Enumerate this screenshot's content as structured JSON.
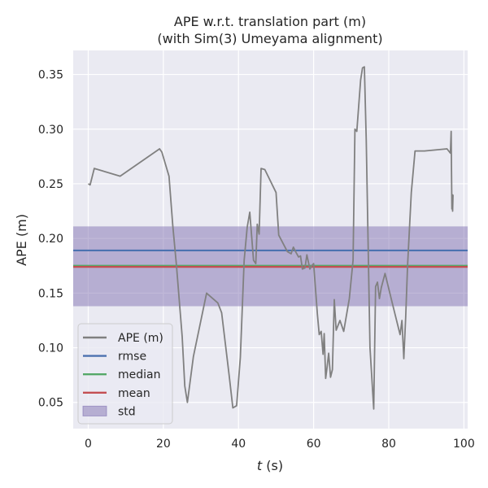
{
  "chart_data": {
    "type": "line",
    "title": "APE w.r.t. translation part (m)",
    "subtitle": "(with Sim(3) Umeyama alignment)",
    "xlabel_var": "t",
    "xlabel_unit": " (s)",
    "ylabel": "APE (m)",
    "xlim": [
      -4,
      101
    ],
    "ylim": [
      0.026,
      0.372
    ],
    "xticks": [
      0,
      20,
      40,
      60,
      80,
      100
    ],
    "yticks": [
      0.05,
      0.1,
      0.15,
      0.2,
      0.25,
      0.3,
      0.35
    ],
    "ytick_labels": [
      "0.05",
      "0.10",
      "0.15",
      "0.20",
      "0.25",
      "0.30",
      "0.35"
    ],
    "grid": true,
    "legend_position": "lower-left",
    "stats": {
      "rmse": 0.189,
      "median": 0.175,
      "mean": 0.174,
      "std_band": [
        0.138,
        0.211
      ]
    },
    "series": [
      {
        "name": "APE (m)",
        "color": "#808080",
        "x": [
          0.0,
          0.5,
          1.6,
          8.5,
          19.0,
          19.6,
          21.5,
          22.5,
          23.5,
          25.0,
          25.7,
          26.4,
          28.0,
          30.0,
          31.5,
          34.5,
          35.5,
          37.5,
          38.5,
          39.5,
          40.5,
          41.5,
          42.3,
          43.0,
          44.0,
          44.6,
          45.0,
          45.5,
          46.0,
          47.0,
          48.0,
          50.0,
          50.7,
          53.0,
          54.0,
          54.6,
          55.2,
          56.0,
          56.5,
          57.0,
          57.7,
          58.2,
          59.0,
          59.5,
          60.0,
          61.0,
          61.5,
          62.0,
          62.5,
          62.8,
          63.2,
          63.5,
          64.0,
          64.5,
          65.0,
          65.5,
          66.0,
          67.0,
          68.0,
          69.5,
          70.5,
          71.0,
          71.5,
          72.5,
          73.0,
          73.5,
          74.0,
          75.0,
          76.0,
          76.5,
          77.0,
          77.5,
          78.0,
          79.0,
          81.0,
          83.0,
          83.5,
          84.0,
          84.5,
          85.0,
          86.0,
          87.0,
          89.5,
          95.5,
          96.4,
          96.6,
          96.7,
          96.8,
          96.9,
          97.0,
          97.1
        ],
        "y": [
          0.25,
          0.249,
          0.264,
          0.257,
          0.282,
          0.279,
          0.257,
          0.212,
          0.175,
          0.11,
          0.065,
          0.05,
          0.092,
          0.125,
          0.15,
          0.141,
          0.132,
          0.075,
          0.045,
          0.047,
          0.091,
          0.18,
          0.21,
          0.224,
          0.18,
          0.177,
          0.213,
          0.204,
          0.264,
          0.263,
          0.256,
          0.242,
          0.203,
          0.188,
          0.186,
          0.192,
          0.188,
          0.183,
          0.184,
          0.172,
          0.173,
          0.185,
          0.172,
          0.175,
          0.177,
          0.131,
          0.112,
          0.115,
          0.094,
          0.113,
          0.072,
          0.08,
          0.095,
          0.073,
          0.08,
          0.144,
          0.116,
          0.125,
          0.115,
          0.145,
          0.18,
          0.3,
          0.298,
          0.345,
          0.356,
          0.357,
          0.29,
          0.1,
          0.044,
          0.156,
          0.16,
          0.145,
          0.155,
          0.168,
          0.14,
          0.112,
          0.125,
          0.09,
          0.128,
          0.175,
          0.242,
          0.28,
          0.28,
          0.282,
          0.278,
          0.298,
          0.264,
          0.227,
          0.24,
          0.225,
          0.24
        ]
      },
      {
        "name": "rmse",
        "color": "#4c72b0"
      },
      {
        "name": "median",
        "color": "#55a868"
      },
      {
        "name": "mean",
        "color": "#c44e52"
      },
      {
        "name": "std",
        "color": "#8172b2"
      }
    ]
  }
}
